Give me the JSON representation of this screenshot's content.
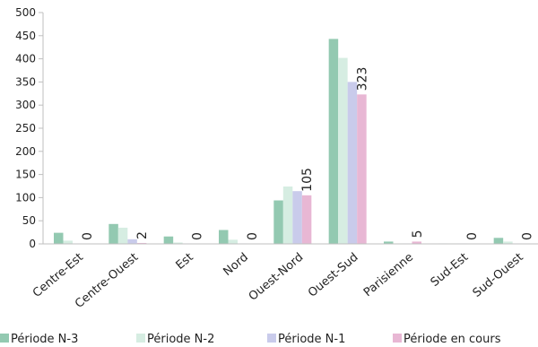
{
  "chart_data": {
    "type": "bar",
    "title": "",
    "xlabel": "",
    "ylabel": "",
    "ylim": [
      0,
      500
    ],
    "yticks": [
      0,
      50,
      100,
      150,
      200,
      250,
      300,
      350,
      400,
      450,
      500
    ],
    "grid": false,
    "legend_position": "bottom",
    "categories": [
      "Centre-Est",
      "Centre-Ouest",
      "Est",
      "Nord",
      "Ouest-Nord",
      "Ouest-Sud",
      "Parisienne",
      "Sud-Est",
      "Sud-Ouest"
    ],
    "series": [
      {
        "name": "Période N-3",
        "color": "#93c9b1",
        "values": [
          24,
          43,
          16,
          30,
          94,
          443,
          5,
          1,
          13
        ]
      },
      {
        "name": "Période N-2",
        "color": "#d6ede2",
        "values": [
          7,
          35,
          3,
          9,
          124,
          402,
          1,
          1,
          5
        ]
      },
      {
        "name": "Période N-1",
        "color": "#c9cbeb",
        "values": [
          1,
          10,
          1,
          1,
          114,
          350,
          1,
          1,
          1
        ]
      },
      {
        "name": "Période en cours",
        "color": "#e8b7d4",
        "values": [
          0,
          2,
          0,
          0,
          105,
          323,
          5,
          0,
          0
        ]
      }
    ],
    "data_labels": [
      "0",
      "2",
      "0",
      "0",
      "105",
      "323",
      "5",
      "0",
      "0"
    ]
  }
}
